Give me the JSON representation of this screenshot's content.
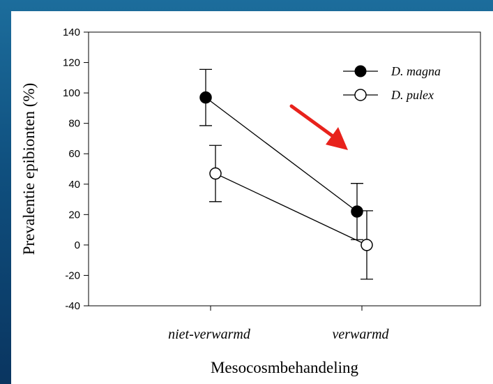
{
  "chart_data": {
    "type": "line",
    "title": "",
    "xlabel": "Mesocosmbehandeling",
    "ylabel": "Prevalentie epibionten (%)",
    "categories": [
      "niet-verwarmd",
      "verwarmd"
    ],
    "ylim": [
      -40,
      140
    ],
    "yticks": [
      -40,
      -20,
      0,
      20,
      40,
      60,
      80,
      100,
      120,
      140
    ],
    "grid": false,
    "legend_position": "top-right",
    "series": [
      {
        "name": "D. magna",
        "marker": "filled-circle",
        "color": "#000000",
        "values": [
          97,
          22
        ],
        "error": [
          18.5,
          18.5
        ]
      },
      {
        "name": "D. pulex",
        "marker": "open-circle",
        "color": "#000000",
        "values": [
          47,
          0
        ],
        "error": [
          18.5,
          22.5
        ]
      }
    ],
    "annotations": [
      {
        "type": "arrow",
        "color": "#e8221c",
        "direction": "down-right"
      }
    ]
  }
}
